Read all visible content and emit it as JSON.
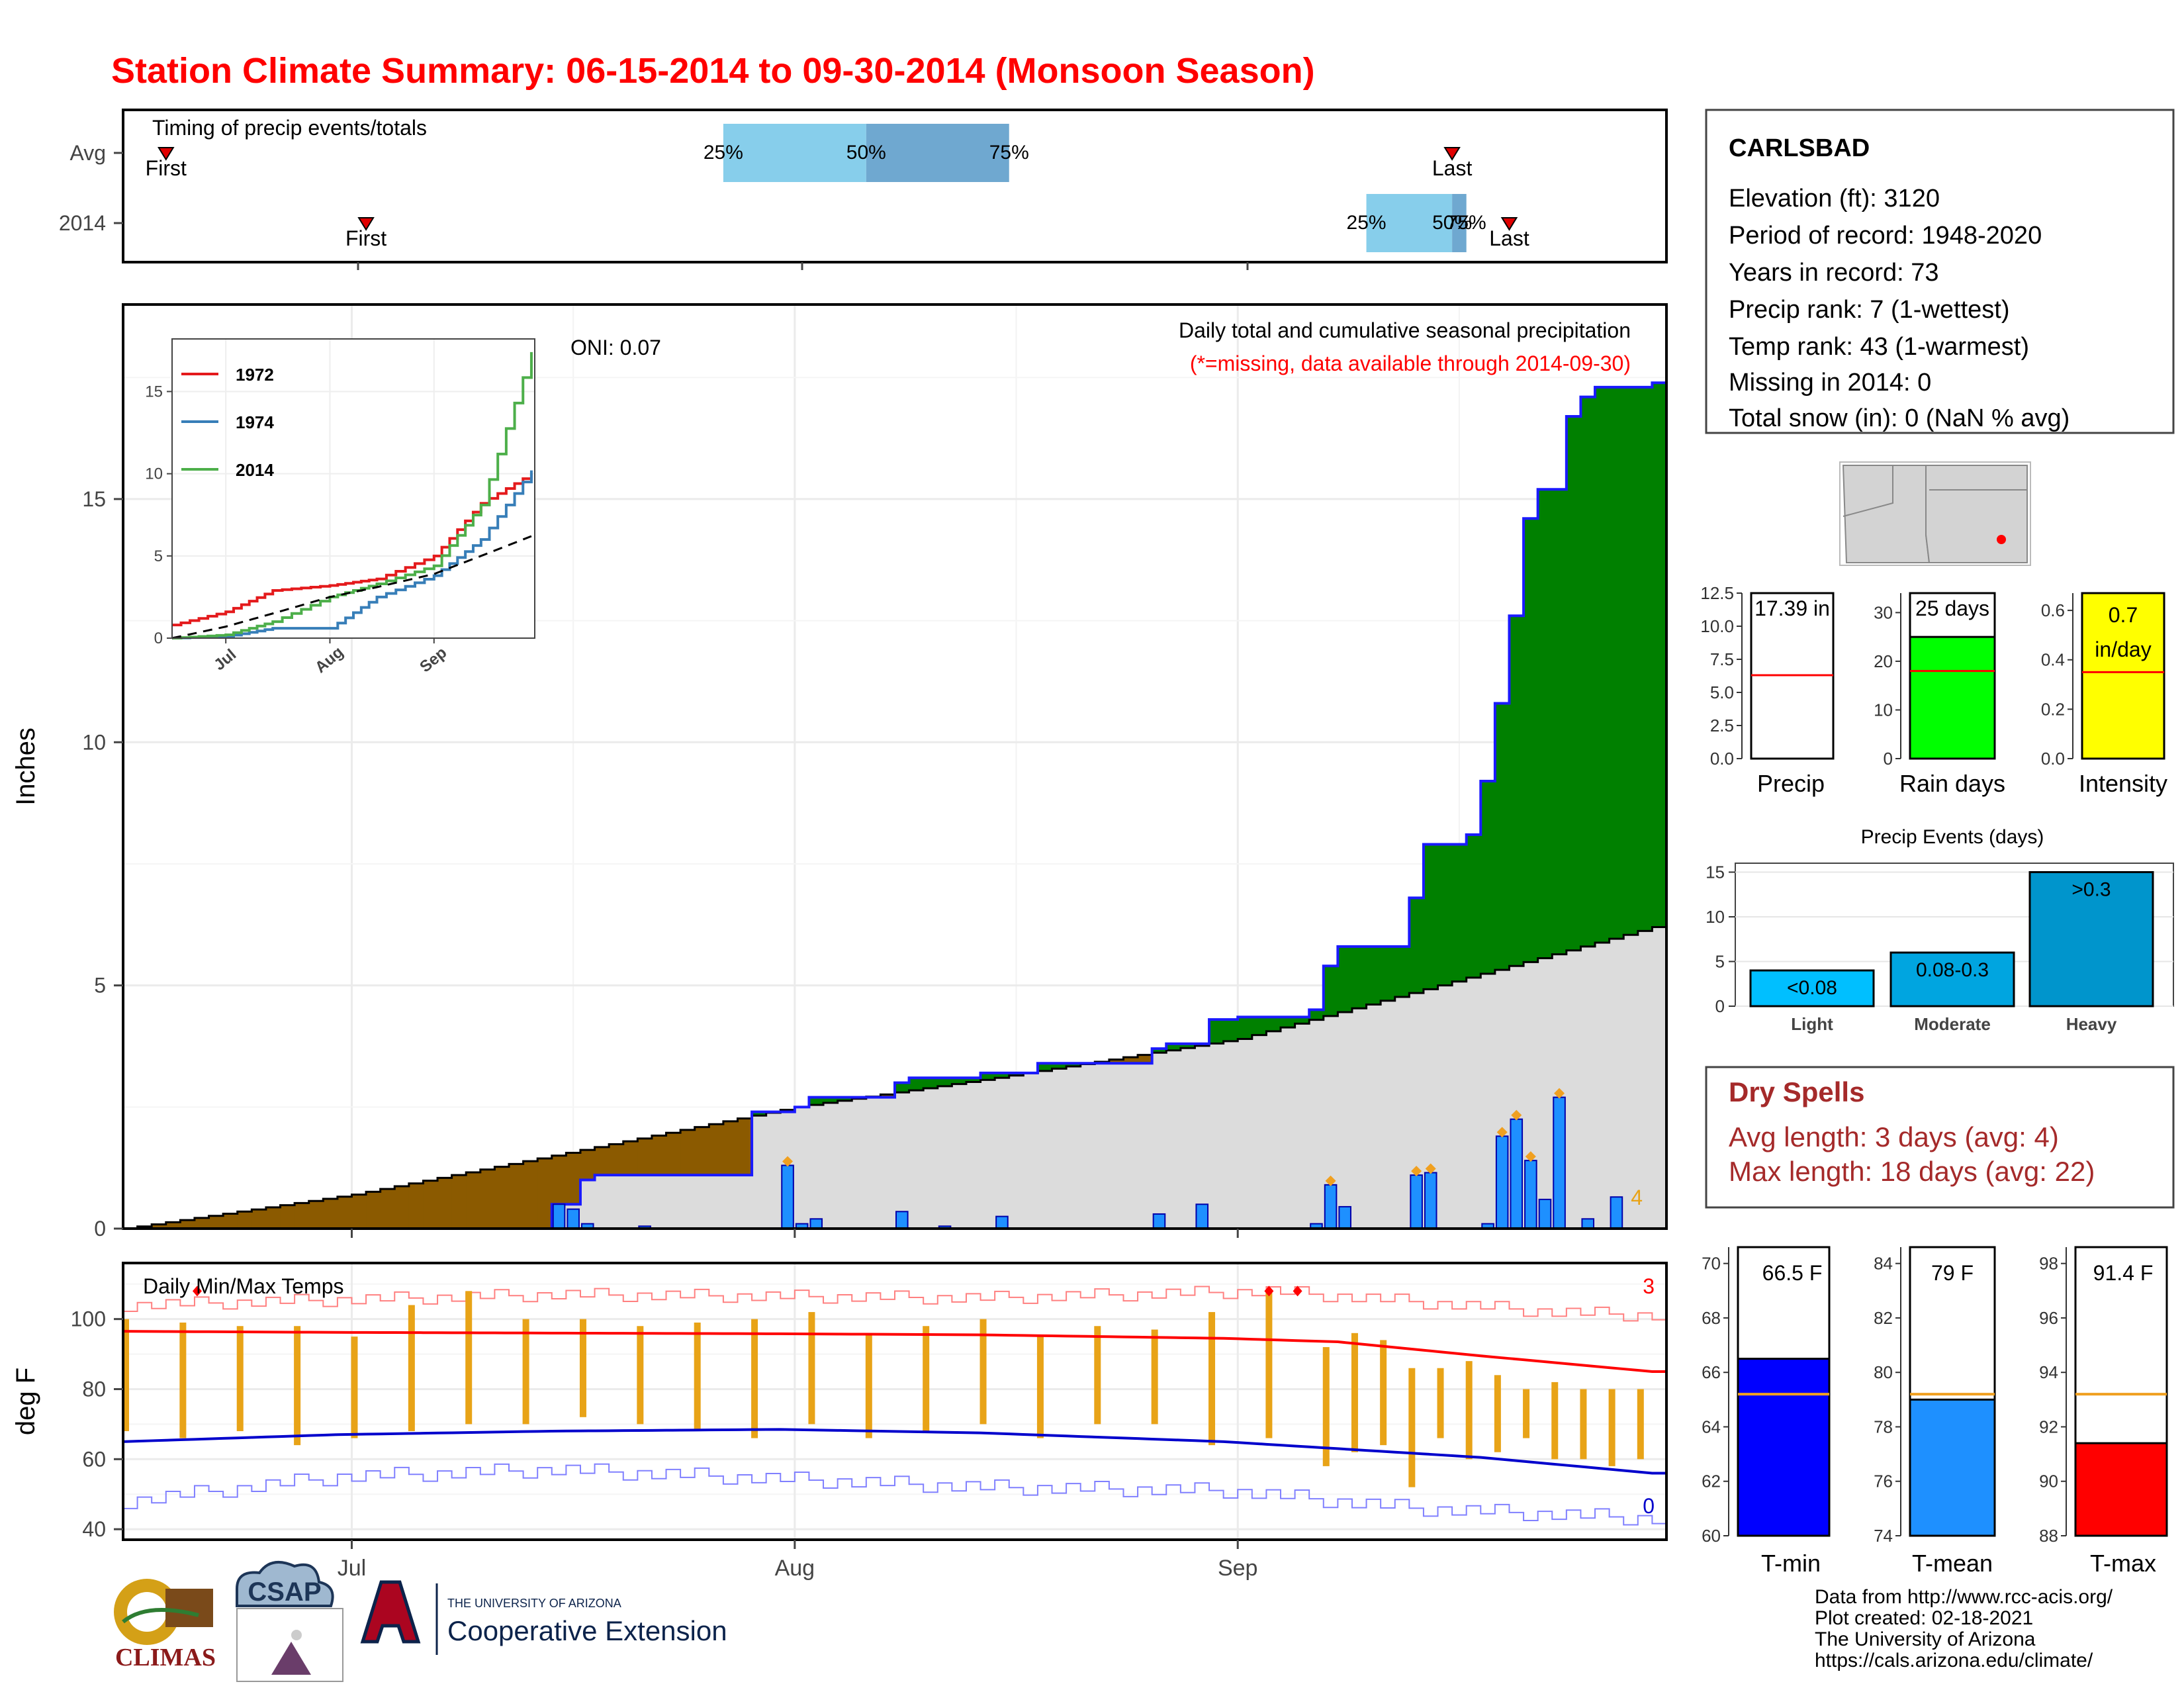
{
  "title": "Station Climate Summary: 06-15-2014 to 09-30-2014 (Monsoon Season)",
  "timing_panel": {
    "label": "Timing of precip events/totals",
    "rows": [
      "Avg",
      "2014"
    ],
    "first_label": "First",
    "last_label": "Last",
    "pct_labels": [
      "25%",
      "50%",
      "75%"
    ]
  },
  "main_panel": {
    "ylabel": "Inches",
    "yticks": [
      "0",
      "5",
      "10",
      "15"
    ],
    "header1": "Daily total and cumulative seasonal precipitation",
    "header2": "(*=missing, data available through 2014-09-30)",
    "oni": "ONI: 0.07",
    "corner_count": "4",
    "inset": {
      "yticks": [
        "0",
        "5",
        "10",
        "15"
      ],
      "xticks": [
        "Jul",
        "Aug",
        "Sep"
      ],
      "legend": [
        "1972",
        "1974",
        "2014"
      ]
    }
  },
  "temp_panel": {
    "label": "Daily Min/Max Temps",
    "ylabel": "deg F",
    "yticks": [
      "40",
      "60",
      "80",
      "100"
    ],
    "xticks": [
      "Jul",
      "Aug",
      "Sep"
    ],
    "record_high_count": "3",
    "record_low_count": "0"
  },
  "station": {
    "name": "CARLSBAD",
    "lines": [
      "Elevation (ft): 3120",
      "Period of record: 1948-2020",
      "Years in record: 73",
      "Precip rank: 7 (1-wettest)",
      "Temp rank: 43 (1-warmest)",
      "Missing in 2014: 0",
      "Total snow (in): 0 (NaN % avg)"
    ]
  },
  "summary_bars": {
    "precip": {
      "label": "Precip",
      "value_text": "17.39 in",
      "yticks": [
        "0.0",
        "2.5",
        "5.0",
        "7.5",
        "10.0",
        "12.5"
      ]
    },
    "rain_days": {
      "label": "Rain days",
      "value_text": "25 days",
      "yticks": [
        "0",
        "10",
        "20",
        "30"
      ]
    },
    "intensity": {
      "label": "Intensity",
      "value_text_1": "0.7",
      "value_text_2": "in/day",
      "yticks": [
        "0.0",
        "0.2",
        "0.4",
        "0.6"
      ]
    }
  },
  "precip_events": {
    "title": "Precip Events (days)",
    "yticks": [
      "0",
      "5",
      "10",
      "15"
    ],
    "categories": [
      "Light",
      "Moderate",
      "Heavy"
    ],
    "bar_labels": [
      "<0.08",
      "0.08-0.3",
      ">0.3"
    ]
  },
  "dry_spells": {
    "title": "Dry Spells",
    "line1": "Avg length: 3 days (avg: 4)",
    "line2": "Max length: 18 days (avg: 22)"
  },
  "temp_bars": {
    "tmin": {
      "label": "T-min",
      "value_text": "66.5 F",
      "yticks": [
        "60",
        "62",
        "64",
        "66",
        "68",
        "70"
      ]
    },
    "tmean": {
      "label": "T-mean",
      "value_text": "79 F",
      "yticks": [
        "74",
        "76",
        "78",
        "80",
        "82",
        "84"
      ]
    },
    "tmax": {
      "label": "T-max",
      "value_text": "91.4 F",
      "yticks": [
        "88",
        "90",
        "92",
        "94",
        "96",
        "98"
      ]
    }
  },
  "footer": {
    "credits": [
      "Data from http://www.rcc-acis.org/",
      "Plot created: 02-18-2021",
      "The University of Arizona",
      "https://cals.arizona.edu/climate/"
    ],
    "logo_climas": "CLIMAS",
    "logo_csap": "CSAP",
    "logo_ua_line1": "THE UNIVERSITY OF ARIZONA",
    "logo_ua_line2": "Cooperative Extension"
  },
  "colors": {
    "title": "#ff0000",
    "cum_above": "#008000",
    "cum_below": "#8b5a00",
    "cum_normal": "#dcdcdc",
    "daily_bar": "#1e90ff",
    "temp_bar": "#e8a317",
    "tmax_line": "#ff0000",
    "tmin_line": "#0000cc",
    "dry_spells": "#a52a2a"
  },
  "chart_data": [
    {
      "type": "bar",
      "title": "Timing of precip events/totals",
      "categories": [
        "Avg",
        "2014"
      ],
      "series": [
        {
          "values": [
            {
              "first": "2014-06-18",
              "p25": "2014-07-27",
              "p50": "2014-08-06",
              "p75": "2014-08-16",
              "last": "2014-09-16"
            },
            {
              "first": "2014-07-02",
              "p25": "2014-09-10",
              "p50": "2014-09-16",
              "p75": "2014-09-17",
              "last": "2014-09-20"
            }
          ]
        }
      ]
    },
    {
      "type": "area",
      "title": "Daily total and cumulative seasonal precipitation",
      "xlabel": "",
      "ylabel": "Inches",
      "ylim": [
        0,
        19
      ],
      "x_start": "2014-06-15",
      "x_end": "2014-09-30",
      "series": [
        {
          "name": "cumulative_2014",
          "values": [
            [
              "2014-06-15",
              0
            ],
            [
              "2014-07-15",
              0.5
            ],
            [
              "2014-07-17",
              1.0
            ],
            [
              "2014-07-18",
              1.1
            ],
            [
              "2014-07-29",
              2.4
            ],
            [
              "2014-08-01",
              2.5
            ],
            [
              "2014-08-02",
              2.7
            ],
            [
              "2014-08-08",
              3.0
            ],
            [
              "2014-08-09",
              3.1
            ],
            [
              "2014-08-14",
              3.2
            ],
            [
              "2014-08-18",
              3.4
            ],
            [
              "2014-08-26",
              3.7
            ],
            [
              "2014-08-27",
              3.8
            ],
            [
              "2014-08-30",
              4.3
            ],
            [
              "2014-09-01",
              4.35
            ],
            [
              "2014-09-06",
              4.5
            ],
            [
              "2014-09-07",
              5.4
            ],
            [
              "2014-09-08",
              5.8
            ],
            [
              "2014-09-13",
              6.8
            ],
            [
              "2014-09-14",
              7.9
            ],
            [
              "2014-09-17",
              8.1
            ],
            [
              "2014-09-18",
              9.2
            ],
            [
              "2014-09-19",
              10.8
            ],
            [
              "2014-09-20",
              12.6
            ],
            [
              "2014-09-21",
              14.6
            ],
            [
              "2014-09-22",
              15.2
            ],
            [
              "2014-09-24",
              16.7
            ],
            [
              "2014-09-25",
              17.1
            ],
            [
              "2014-09-26",
              17.3
            ],
            [
              "2014-09-30",
              17.39
            ]
          ]
        },
        {
          "name": "cumulative_avg",
          "values": [
            [
              "2014-06-15",
              0
            ],
            [
              "2014-07-01",
              0.7
            ],
            [
              "2014-07-15",
              1.5
            ],
            [
              "2014-08-01",
              2.5
            ],
            [
              "2014-08-15",
              3.1
            ],
            [
              "2014-09-01",
              3.9
            ],
            [
              "2014-09-15",
              5.0
            ],
            [
              "2014-09-30",
              6.2
            ]
          ]
        },
        {
          "name": "daily_2014",
          "values": [
            [
              "2014-07-15",
              0.5
            ],
            [
              "2014-07-16",
              0.4
            ],
            [
              "2014-07-17",
              0.1
            ],
            [
              "2014-07-21",
              0.05
            ],
            [
              "2014-07-31",
              1.3
            ],
            [
              "2014-08-01",
              0.1
            ],
            [
              "2014-08-02",
              0.2
            ],
            [
              "2014-08-08",
              0.35
            ],
            [
              "2014-08-11",
              0.05
            ],
            [
              "2014-08-15",
              0.25
            ],
            [
              "2014-08-26",
              0.3
            ],
            [
              "2014-08-29",
              0.5
            ],
            [
              "2014-09-06",
              0.1
            ],
            [
              "2014-09-07",
              0.9
            ],
            [
              "2014-09-08",
              0.45
            ],
            [
              "2014-09-13",
              1.1
            ],
            [
              "2014-09-14",
              1.15
            ],
            [
              "2014-09-18",
              0.1
            ],
            [
              "2014-09-19",
              1.9
            ],
            [
              "2014-09-20",
              2.25
            ],
            [
              "2014-09-21",
              1.4
            ],
            [
              "2014-09-22",
              0.6
            ],
            [
              "2014-09-23",
              2.7
            ],
            [
              "2014-09-25",
              0.2
            ],
            [
              "2014-09-27",
              0.65
            ]
          ]
        }
      ]
    },
    {
      "type": "line",
      "title": "",
      "xlabel": "",
      "ylabel": "",
      "ylim": [
        0,
        18
      ],
      "x": [
        "2014-06-15",
        "2014-07-01",
        "2014-07-15",
        "2014-08-01",
        "2014-08-15",
        "2014-09-01",
        "2014-09-15",
        "2014-09-30"
      ],
      "series": [
        {
          "name": "1972",
          "values": [
            0.8,
            1.6,
            2.9,
            3.2,
            3.6,
            5.0,
            8.2,
            10.0
          ]
        },
        {
          "name": "1974",
          "values": [
            0,
            0.1,
            0.6,
            0.6,
            2.5,
            3.8,
            6.0,
            10.2
          ]
        },
        {
          "name": "2014",
          "values": [
            0,
            0.2,
            1.0,
            2.5,
            3.3,
            4.4,
            8.1,
            17.4
          ]
        }
      ]
    },
    {
      "type": "line",
      "title": "Daily Min/Max Temps",
      "ylabel": "deg F",
      "ylim": [
        37,
        116
      ],
      "x_start": "2014-06-15",
      "x_end": "2014-09-30",
      "series": [
        {
          "name": "normal_max",
          "values": [
            [
              0,
              96.5
            ],
            [
              15,
              96.2
            ],
            [
              30,
              96.0
            ],
            [
              46,
              95.8
            ],
            [
              60,
              95.5
            ],
            [
              77,
              94.5
            ],
            [
              85,
              93.5
            ],
            [
              95,
              89.5
            ],
            [
              107,
              85.0
            ]
          ]
        },
        {
          "name": "normal_min",
          "values": [
            [
              0,
              65.0
            ],
            [
              15,
              67.0
            ],
            [
              30,
              68.0
            ],
            [
              46,
              68.5
            ],
            [
              60,
              67.5
            ],
            [
              77,
              65.0
            ],
            [
              85,
              63.0
            ],
            [
              95,
              60.5
            ],
            [
              107,
              56.0
            ]
          ]
        },
        {
          "name": "record_max",
          "values": [
            [
              0,
              104
            ],
            [
              30,
              107
            ],
            [
              60,
              106
            ],
            [
              80,
              108
            ],
            [
              100,
              102
            ],
            [
              107,
              101
            ]
          ]
        },
        {
          "name": "record_min",
          "values": [
            [
              0,
              48
            ],
            [
              15,
              55
            ],
            [
              30,
              57
            ],
            [
              60,
              52
            ],
            [
              77,
              51
            ],
            [
              90,
              46
            ],
            [
              107,
              43
            ]
          ]
        },
        {
          "name": "daily_range",
          "values": [
            [
              0,
              68,
              100
            ],
            [
              4,
              66,
              99
            ],
            [
              8,
              68,
              98
            ],
            [
              12,
              64,
              98
            ],
            [
              16,
              66,
              95
            ],
            [
              20,
              68,
              104
            ],
            [
              24,
              70,
              108
            ],
            [
              28,
              70,
              100
            ],
            [
              32,
              72,
              100
            ],
            [
              36,
              70,
              98
            ],
            [
              40,
              68,
              99
            ],
            [
              44,
              66,
              100
            ],
            [
              48,
              70,
              102
            ],
            [
              52,
              66,
              96
            ],
            [
              56,
              68,
              98
            ],
            [
              60,
              70,
              100
            ],
            [
              64,
              66,
              95
            ],
            [
              68,
              70,
              98
            ],
            [
              72,
              70,
              97
            ],
            [
              76,
              64,
              102
            ],
            [
              80,
              66,
              108
            ],
            [
              84,
              58,
              92
            ],
            [
              86,
              62,
              96
            ],
            [
              88,
              64,
              94
            ],
            [
              90,
              52,
              86
            ],
            [
              92,
              66,
              86
            ],
            [
              94,
              60,
              88
            ],
            [
              96,
              62,
              84
            ],
            [
              98,
              66,
              80
            ],
            [
              100,
              60,
              82
            ],
            [
              102,
              60,
              80
            ],
            [
              104,
              58,
              80
            ],
            [
              106,
              60,
              80
            ]
          ]
        }
      ]
    },
    {
      "type": "bar",
      "categories": [
        "Precip",
        "Rain days",
        "Intensity"
      ],
      "series": [
        {
          "name": "2014",
          "values": [
            17.39,
            25,
            0.7
          ]
        },
        {
          "name": "avg",
          "values": [
            6.3,
            18,
            0.35
          ]
        }
      ]
    },
    {
      "type": "bar",
      "title": "Precip Events (days)",
      "categories": [
        "Light",
        "Moderate",
        "Heavy"
      ],
      "values": [
        4,
        6,
        15
      ],
      "ylim": [
        0,
        16
      ]
    },
    {
      "type": "bar",
      "categories": [
        "T-min",
        "T-mean",
        "T-max"
      ],
      "series": [
        {
          "name": "2014",
          "values": [
            66.5,
            79,
            91.4
          ]
        },
        {
          "name": "avg",
          "values": [
            65.2,
            79.2,
            93.2
          ]
        }
      ]
    }
  ]
}
